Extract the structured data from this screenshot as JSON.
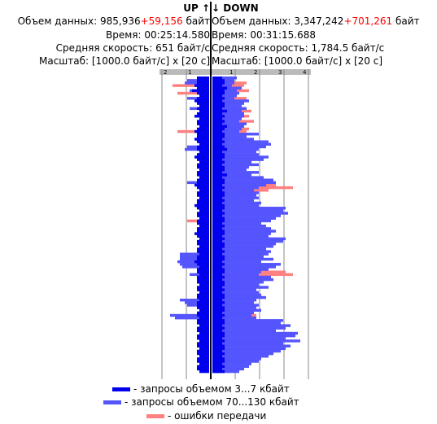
{
  "up": {
    "title": "UP",
    "arrow": "↑",
    "volume_label": "Объем данных: ",
    "volume_value": "985,936",
    "volume_extra": "+59,156",
    "volume_unit": " байт",
    "time": "Время: 00:25:14.580",
    "speed": "Средняя скорость: 651 байт/с",
    "scale": "Масштаб: [1000.0 байт/с] x [20 с]",
    "axis_ticks": [
      "2",
      "1"
    ]
  },
  "down": {
    "title": "DOWN",
    "arrow": "↓",
    "volume_label": "Объем данных: ",
    "volume_value": "3,347,242",
    "volume_extra": "+701,261",
    "volume_unit": " байт",
    "time": "Время: 00:31:15.688",
    "speed": "Средняя скорость: 1,784.5 байт/с",
    "scale": "Масштаб: [1000.0 байт/с] x [20 с]",
    "axis_ticks": [
      "1",
      "2",
      "3",
      "4"
    ]
  },
  "legend": {
    "small": "- запросы объемом 3...7 кбайт",
    "large": "- запросы объемом 70...130 кбайт",
    "errors": "- ошибки передачи"
  },
  "colors": {
    "small": "#0000ee",
    "large": "#5555ff",
    "errors": "#ff8080",
    "axis_bar": "#bbbbbb",
    "grid": "#888888"
  },
  "chart_data": {
    "type": "bar",
    "orientation": "horizontal",
    "unit": "1000 байт/с",
    "interval": "20 с",
    "xlim_up": [
      0,
      2
    ],
    "xlim_down": [
      0,
      4
    ],
    "up_small": [
      0.5,
      0.5,
      0.5,
      0.6,
      0.5,
      0.7,
      0.5,
      0.4,
      0.5,
      0.6,
      0.5,
      0.4,
      0.5,
      0.4,
      0.5,
      0.6,
      0.4,
      0.5,
      0.5,
      0.4,
      0.5,
      0.6,
      0.5,
      0.5,
      0.6,
      0.5,
      0.4,
      0.5,
      0.5,
      0.4,
      0.5,
      0.6,
      0.5,
      0.4,
      0.5,
      0.5,
      0.4,
      0.5,
      0.5,
      0.4,
      0.5,
      0.5,
      0.6,
      0.5,
      0.4,
      0.5,
      0.5,
      0.4,
      0.5,
      0.5,
      0.6,
      0.5,
      0.4,
      0.5,
      0.5,
      0.4,
      0.5,
      0.5,
      0.4,
      0.5,
      0.5,
      0.6,
      0.5,
      0.4,
      0.5,
      0.5,
      0.4,
      0.5,
      0.5,
      0.4,
      0.5,
      0.5,
      0.6,
      0.5,
      0.4,
      0.5,
      0.5,
      0.4,
      0.5,
      0.5,
      0.5,
      0.4,
      0.5,
      0.5,
      0.4,
      0.5,
      0.5,
      0.4,
      0.5,
      0.5,
      0.5,
      0.4,
      0.5,
      0.5,
      0.4,
      0.5,
      0.5,
      0.4,
      0.5,
      0.5,
      0.4,
      0.5,
      0.5,
      0.4,
      0.5,
      0.5,
      0.4,
      0.5,
      0.5,
      0.4,
      0.5,
      0.5,
      0.4,
      0.5,
      0.5,
      0.4
    ],
    "up_large": [
      0,
      0.9,
      1.0,
      0,
      0,
      0.8,
      0,
      0,
      0.9,
      0,
      0,
      0,
      0.8,
      0,
      0,
      0,
      0,
      0,
      0,
      0,
      0,
      0,
      0,
      0,
      0,
      0,
      0,
      0.9,
      1.0,
      0,
      0,
      0,
      0,
      0,
      0,
      0,
      0,
      0,
      0,
      0,
      0,
      0.9,
      0,
      0,
      0,
      0,
      0,
      0,
      0,
      0,
      0,
      0,
      0,
      0,
      0,
      0,
      0,
      0,
      0,
      0,
      0,
      0,
      0,
      0,
      0,
      0,
      0,
      0,
      0,
      1.2,
      1.2,
      1.2,
      1.3,
      1.2,
      1.1,
      0,
      0,
      0.8,
      0,
      0,
      0,
      0,
      0,
      0,
      0,
      0,
      0,
      1.2,
      1.0,
      0.9,
      0,
      0,
      0,
      1.6,
      1.4,
      0,
      0,
      0,
      0,
      0,
      0,
      0,
      0,
      0,
      0,
      0,
      0,
      0,
      0,
      0,
      0,
      0,
      0,
      0,
      0,
      0
    ],
    "up_err": [
      0,
      0,
      0,
      1.5,
      0,
      0,
      1.3,
      0,
      0,
      0,
      0,
      0,
      0,
      0,
      0,
      0,
      0,
      0,
      0,
      0,
      0,
      1.3,
      0,
      0,
      0,
      0,
      0,
      0,
      0,
      0,
      0,
      0,
      0,
      0,
      0,
      0,
      0,
      0,
      0,
      0,
      0,
      0,
      0,
      0,
      0,
      0,
      0,
      0,
      0,
      0,
      0,
      0,
      0,
      0,
      0,
      0,
      0.9,
      0,
      0,
      0,
      0,
      0,
      0,
      0,
      0,
      0,
      0,
      0,
      0,
      0,
      0,
      0,
      0,
      0,
      0,
      0,
      0,
      0,
      0,
      0,
      0,
      0,
      0,
      0,
      0,
      0,
      0,
      0,
      0,
      0,
      0,
      0,
      0,
      0,
      0,
      0,
      0,
      0,
      0,
      0,
      0,
      0,
      0,
      0,
      0,
      0,
      0,
      0,
      0,
      0,
      0,
      0,
      0,
      0,
      0,
      0
    ],
    "down_small": [
      0.4,
      0.5,
      0.5,
      0.4,
      0.6,
      0.5,
      0.5,
      0.4,
      0.5,
      0.4,
      0.5,
      0.5,
      0.4,
      0.6,
      0.4,
      0.5,
      0.4,
      0.5,
      0.4,
      0.6,
      0.5,
      0.4,
      0.5,
      0.5,
      0.4,
      0.5,
      0.4,
      0.5,
      0.6,
      0.4,
      0.5,
      0.5,
      0.4,
      0.5,
      0.4,
      0.5,
      0.5,
      0.4,
      0.6,
      0.4,
      0.5,
      0.5,
      0.4,
      0.5,
      0.4,
      0.5,
      0.5,
      0.4,
      0.5,
      0.4,
      0.5,
      0.5,
      0.4,
      0.5,
      0.4,
      0.5,
      0.5,
      0.4,
      0.5,
      0.4,
      0.5,
      0.5,
      0.4,
      0.5,
      0.4,
      0.5,
      0.5,
      0.4,
      0.5,
      0.4,
      0.5,
      0.5,
      0.4,
      0.5,
      0.4,
      0.5,
      0.5,
      0.4,
      0.5,
      0.4,
      0.5,
      0.5,
      0.4,
      0.5,
      0.4,
      0.5,
      0.5,
      0.4,
      0.5,
      0.4,
      0.5,
      0.5,
      0.4,
      0.5,
      0.4,
      0.5,
      0.5,
      0.4,
      0.5,
      0.4,
      0.5,
      0.5,
      0.4,
      0.5,
      0.4,
      0.5,
      0.5,
      0.4,
      0.5,
      0.4,
      0.5,
      0.5,
      0.4,
      0.5,
      0.4,
      0.5
    ],
    "down_large": [
      1.0,
      0.9,
      0.9,
      0.8,
      1.2,
      1.0,
      1.1,
      1.0,
      0.9,
      1.5,
      1.3,
      1.2,
      1.4,
      1.2,
      1.3,
      1.3,
      1.2,
      1.1,
      1.4,
      1.3,
      1.2,
      1.1,
      1.9,
      1.4,
      1.7,
      2.3,
      2.4,
      2.2,
      1.9,
      1.8,
      1.9,
      2.3,
      2.1,
      1.6,
      1.9,
      1.5,
      1.4,
      1.9,
      1.6,
      2.1,
      2.5,
      2.6,
      2.2,
      1.9,
      1.7,
      1.9,
      1.8,
      1.9,
      1.7,
      2.0,
      1.9,
      3.0,
      2.9,
      3.1,
      2.8,
      2.6,
      2.4,
      2.0,
      2.2,
      2.4,
      2.6,
      2.4,
      2.3,
      3.0,
      2.9,
      2.6,
      2.5,
      2.2,
      2.4,
      2.3,
      2.1,
      2.5,
      2.0,
      2.8,
      2.6,
      2.3,
      2.0,
      1.9,
      2.4,
      2.5,
      2.1,
      1.9,
      2.3,
      1.8,
      1.9,
      2.0,
      2.2,
      1.8,
      1.7,
      1.9,
      1.8,
      2.0,
      1.7,
      1.6,
      1.8,
      2.9,
      2.8,
      3.2,
      3.0,
      2.6,
      3.5,
      3.4,
      3.0,
      3.6,
      2.9,
      3.2,
      3.0,
      2.8,
      2.5,
      2.3,
      2.0,
      1.9,
      1.6,
      1.5,
      1.3,
      1.1
    ],
    "down_err": [
      0,
      0,
      1.4,
      1.3,
      0,
      1.5,
      0,
      0,
      1.4,
      1.3,
      0,
      0,
      1.4,
      1.6,
      0,
      1.5,
      1.2,
      1.7,
      1.1,
      1.3,
      1.5,
      1.4,
      0,
      1.2,
      0,
      0,
      0,
      0,
      0,
      0,
      0,
      0,
      0,
      0,
      0,
      0,
      1.4,
      1.3,
      0,
      0,
      0,
      0,
      2.6,
      3.3,
      2.3,
      1.9,
      0,
      0,
      0,
      1.6,
      0,
      0,
      0,
      0,
      0,
      0,
      0,
      0,
      0,
      0,
      0,
      0,
      0,
      0,
      0,
      0,
      0,
      0,
      0,
      0,
      0,
      0,
      0,
      0,
      2.5,
      1.7,
      3.0,
      3.3,
      2.2,
      1.8,
      0,
      0,
      0,
      0,
      0,
      0,
      0,
      0,
      0,
      0,
      0,
      1.4,
      1.3,
      1.8,
      0,
      0,
      0,
      0,
      0,
      0,
      0,
      0,
      0,
      0,
      0,
      0,
      0,
      0,
      0,
      0,
      0,
      0,
      0,
      0
    ]
  }
}
